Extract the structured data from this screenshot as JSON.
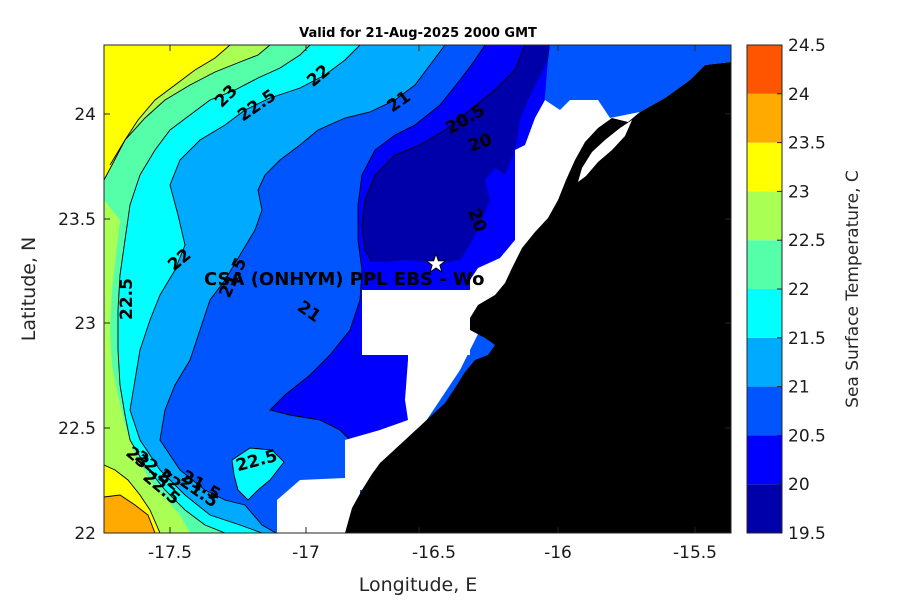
{
  "title": "Valid for 21-Aug-2025 2000 GMT",
  "site_label": "CSA (ONHYM) PPL EBS  - Wo",
  "x_axis": {
    "label": "Longitude, E",
    "ticks": [
      "-17.5",
      "-17",
      "-16.5",
      "-16",
      "-15.5"
    ],
    "range": [
      -17.78,
      -15.35
    ]
  },
  "y_axis": {
    "label": "Latitude, N",
    "ticks": [
      "22",
      "22.5",
      "23",
      "23.5",
      "24"
    ],
    "range": [
      22.0,
      24.33
    ]
  },
  "colorbar": {
    "label": "Sea Surface Temperature, C",
    "tick_labels": [
      "19.5",
      "20",
      "20.5",
      "21",
      "21.5",
      "22",
      "22.5",
      "23",
      "23.5",
      "24",
      "24.5"
    ],
    "colors": [
      "#0000aa",
      "#0000ff",
      "#0055ff",
      "#00aaff",
      "#00ffff",
      "#55ffaa",
      "#aaff55",
      "#ffff00",
      "#ffaa00",
      "#ff5500"
    ]
  },
  "contour_labels": [
    "23",
    "22.5",
    "22",
    "21",
    "20.5",
    "20",
    "20",
    "22",
    "22.5",
    "21.5",
    "21",
    "22.5",
    "21.5",
    "23",
    "22.5",
    "22",
    "21.5",
    "22.5"
  ],
  "chart_data": {
    "type": "heatmap",
    "title": "Valid for 21-Aug-2025 2000 GMT",
    "xlabel": "Longitude, E",
    "ylabel": "Latitude, N",
    "xlim": [
      -17.78,
      -15.35
    ],
    "ylim": [
      22.0,
      24.33
    ],
    "levels": [
      19.5,
      20,
      20.5,
      21,
      21.5,
      22,
      22.5,
      23,
      23.5,
      24,
      24.5
    ],
    "land_color": "#000000",
    "nodata_color": "#ffffff",
    "site_marker": {
      "symbol": "star",
      "lon": -16.49,
      "lat": 23.29
    }
  }
}
